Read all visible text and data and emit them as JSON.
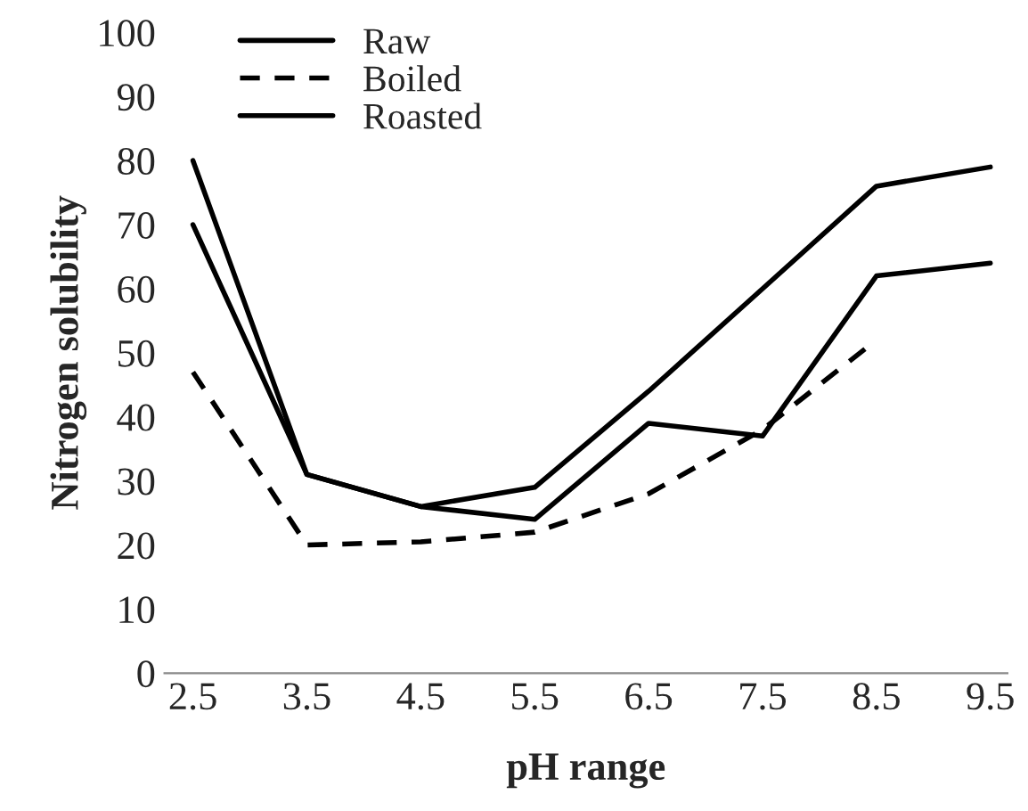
{
  "chart_data": {
    "type": "line",
    "xlabel": "pH range",
    "ylabel": "Nitrogen solubility",
    "categories": [
      "2.5",
      "3.5",
      "4.5",
      "5.5",
      "6.5",
      "7.5",
      "8.5",
      "9.5"
    ],
    "series": [
      {
        "name": "Raw",
        "color": "#000000",
        "line_style": "solid",
        "values": [
          80,
          31,
          26,
          29,
          44,
          60,
          76,
          79
        ]
      },
      {
        "name": "Boiled",
        "color": "#000000",
        "line_style": "dashed",
        "values": [
          47,
          20,
          20.5,
          22,
          28,
          38,
          52,
          null
        ]
      },
      {
        "name": "Roasted",
        "color": "#000000",
        "line_style": "solid",
        "values": [
          70,
          31,
          26,
          24,
          39,
          37,
          62,
          64
        ]
      }
    ],
    "ylim": [
      0,
      100
    ],
    "yticks": [
      0,
      10,
      20,
      30,
      40,
      50,
      60,
      70,
      80,
      90,
      100
    ],
    "grid": false,
    "legend": "top left",
    "marker": "none"
  }
}
